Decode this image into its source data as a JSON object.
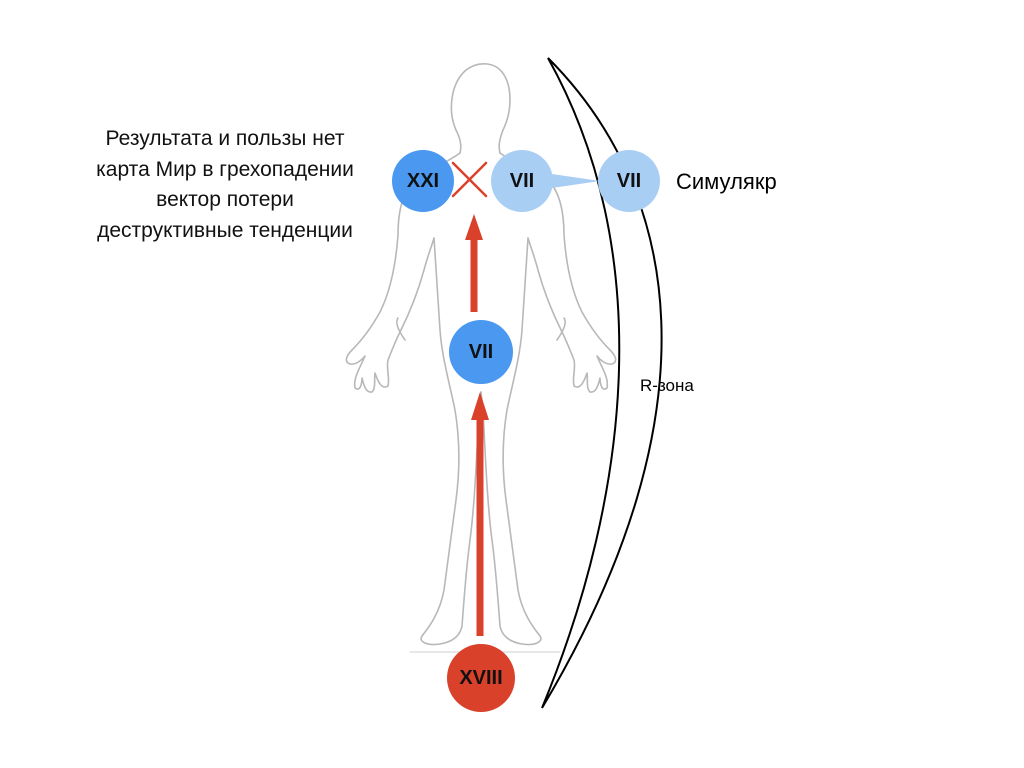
{
  "caption_lines": [
    "Результата и пользы нет",
    "карта Мир в грехопадении",
    "вектор потери",
    "деструктивные тенденции"
  ],
  "nodes": {
    "xxi": "XXI",
    "vii_head": "VII",
    "vii_simulacrum": "VII",
    "vii_center": "VII",
    "xviii": "XVIII"
  },
  "simulacrum_label": "Симулякр",
  "zone_label": "R-зона",
  "colors": {
    "blue_strong": "#4a98f0",
    "blue_light": "#a9cef4",
    "red": "#d9412b",
    "outline": "#b8b8b8"
  }
}
